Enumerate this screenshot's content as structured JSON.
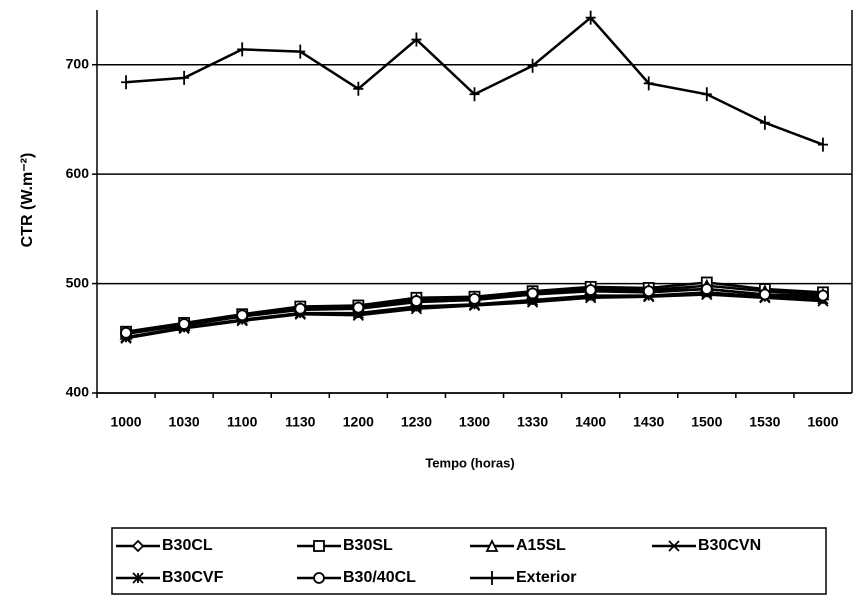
{
  "chart_data": {
    "type": "line",
    "xlabel": "Tempo (horas)",
    "ylabel": "CTR (W.m⁻²)",
    "categories": [
      "1000",
      "1030",
      "1100",
      "1130",
      "1200",
      "1230",
      "1300",
      "1330",
      "1400",
      "1430",
      "1500",
      "1530",
      "1600"
    ],
    "ylim": [
      400,
      750
    ],
    "yticks": [
      400,
      500,
      600,
      700
    ],
    "grid": true,
    "series": [
      {
        "name": "B30CL",
        "color": "#000000",
        "marker": "diamond",
        "values": [
          455,
          462,
          470,
          476,
          477,
          483,
          485,
          490,
          493,
          492,
          495,
          490,
          488
        ]
      },
      {
        "name": "B30SL",
        "color": "#000000",
        "marker": "square",
        "values": [
          456,
          464,
          472,
          479,
          480,
          487,
          488,
          493,
          497,
          496,
          501,
          495,
          492
        ]
      },
      {
        "name": "A15SL",
        "color": "#000000",
        "marker": "triangle",
        "values": [
          454,
          462,
          470,
          477,
          478,
          485,
          486,
          491,
          495,
          494,
          498,
          493,
          490
        ]
      },
      {
        "name": "B30CVN",
        "color": "#000000",
        "marker": "x",
        "values": [
          450,
          459,
          466,
          472,
          471,
          477,
          480,
          483,
          487,
          488,
          490,
          487,
          484
        ]
      },
      {
        "name": "B30CVF",
        "color": "#000000",
        "marker": "asterisk",
        "values": [
          451,
          460,
          467,
          473,
          473,
          479,
          481,
          485,
          489,
          489,
          492,
          488,
          486
        ]
      },
      {
        "name": "B30/40CL",
        "color": "#000000",
        "marker": "circle",
        "values": [
          455,
          463,
          471,
          477,
          478,
          484,
          486,
          491,
          494,
          493,
          495,
          490,
          489
        ]
      },
      {
        "name": "Exterior",
        "color": "#000000",
        "marker": "plus",
        "values": [
          684,
          688,
          714,
          712,
          678,
          723,
          673,
          699,
          743,
          683,
          673,
          647,
          627
        ]
      }
    ],
    "legend": "bottom"
  }
}
